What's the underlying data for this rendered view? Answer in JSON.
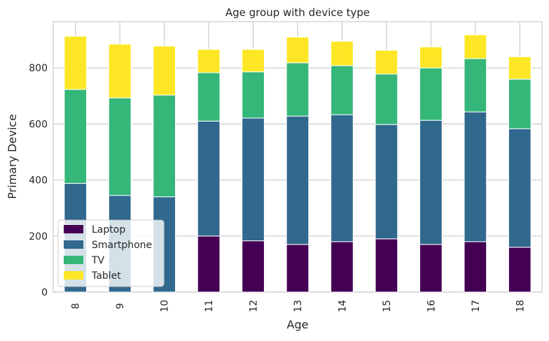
{
  "chart_data": {
    "type": "bar",
    "stacked": true,
    "title": "Age group with device type",
    "xlabel": "Age",
    "ylabel": "Primary Device",
    "categories": [
      "8",
      "9",
      "10",
      "11",
      "12",
      "13",
      "14",
      "15",
      "16",
      "17",
      "18"
    ],
    "series": [
      {
        "name": "Laptop",
        "color": "#440154",
        "values": [
          0,
          0,
          0,
          200,
          183,
          170,
          180,
          190,
          170,
          180,
          160
        ]
      },
      {
        "name": "Smartphone",
        "color": "#31688e",
        "values": [
          388,
          345,
          340,
          410,
          438,
          458,
          453,
          408,
          443,
          463,
          423
        ]
      },
      {
        "name": "TV",
        "color": "#35b779",
        "values": [
          335,
          348,
          363,
          173,
          165,
          190,
          175,
          180,
          187,
          190,
          177
        ]
      },
      {
        "name": "Tablet",
        "color": "#fde725",
        "values": [
          190,
          192,
          175,
          83,
          80,
          92,
          87,
          85,
          75,
          85,
          80
        ]
      }
    ],
    "ylim": [
      0,
      965
    ],
    "yticks": [
      0,
      200,
      400,
      600,
      800
    ],
    "grid": true,
    "legend_position": "lower-left"
  }
}
